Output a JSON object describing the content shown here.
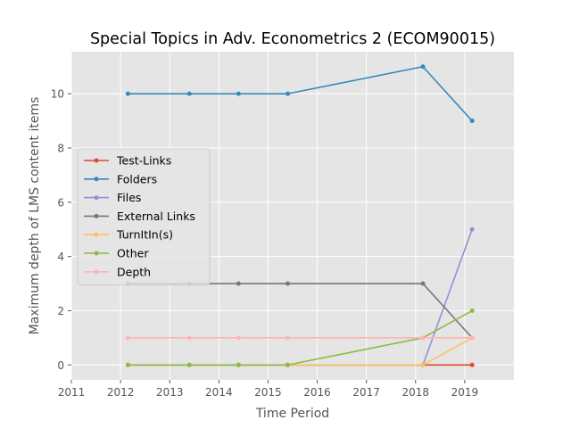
{
  "chart_data": {
    "type": "line",
    "title": "Special Topics in Adv. Econometrics 2 (ECOM90015)",
    "xlabel": "Time Period",
    "ylabel": "Maximum depth of LMS content items",
    "xlim": [
      2011,
      2020
    ],
    "ylim": [
      -0.55,
      11.55
    ],
    "x_ticks": [
      2011,
      2012,
      2013,
      2014,
      2015,
      2016,
      2017,
      2018,
      2019
    ],
    "y_ticks": [
      0,
      2,
      4,
      6,
      8,
      10
    ],
    "grid": true,
    "legend_position": "center-left",
    "x": [
      2012.15,
      2013.4,
      2014.4,
      2015.4,
      2018.15,
      2019.15
    ],
    "series": [
      {
        "name": "Test-Links",
        "color": "#E24A33",
        "values": [
          0,
          0,
          0,
          0,
          0,
          0
        ]
      },
      {
        "name": "Folders",
        "color": "#348ABD",
        "values": [
          10,
          10,
          10,
          10,
          11,
          9
        ]
      },
      {
        "name": "Files",
        "color": "#988ED5",
        "values": [
          0,
          0,
          0,
          0,
          0,
          5
        ]
      },
      {
        "name": "External Links",
        "color": "#777777",
        "values": [
          3,
          3,
          3,
          3,
          3,
          1
        ]
      },
      {
        "name": "TurnItIn(s)",
        "color": "#FBC15E",
        "values": [
          0,
          0,
          0,
          0,
          0,
          1
        ]
      },
      {
        "name": "Other",
        "color": "#8EBA42",
        "values": [
          0,
          0,
          0,
          0,
          1,
          2
        ]
      },
      {
        "name": "Depth",
        "color": "#FFB5B8",
        "values": [
          1,
          1,
          1,
          1,
          1,
          1
        ]
      }
    ]
  }
}
